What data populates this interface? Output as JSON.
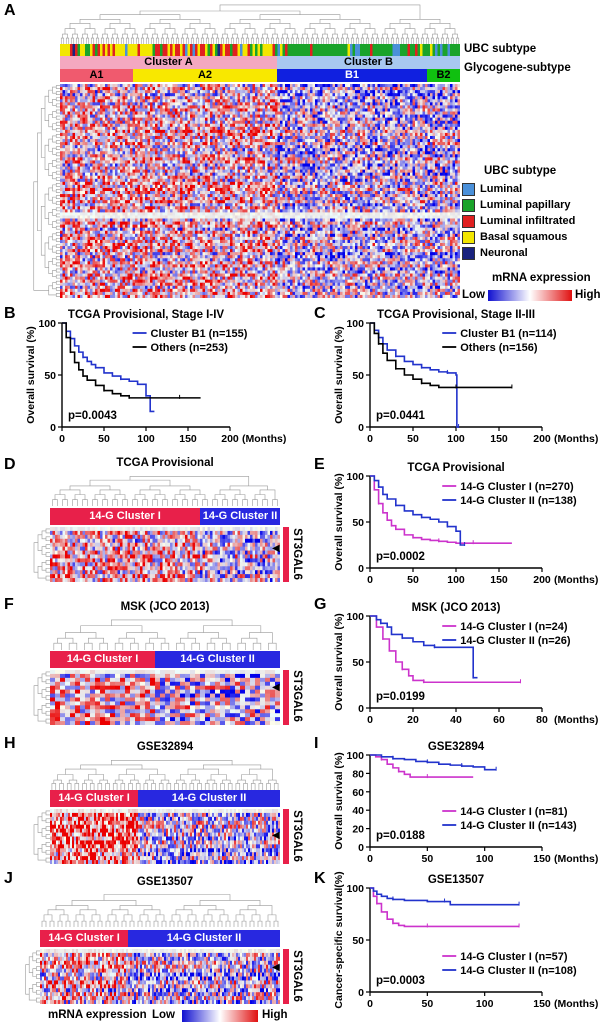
{
  "panel_labels": [
    "A",
    "B",
    "C",
    "D",
    "E",
    "F",
    "G",
    "H",
    "I",
    "J",
    "K"
  ],
  "panel_a": {
    "row_labels": {
      "ubc": "UBC subtype",
      "glyco": "Glycogene-subtype"
    },
    "clusters": {
      "a": "Cluster A",
      "b": "Cluster B",
      "a1": "A1",
      "a2": "A2",
      "b1": "B1",
      "b2": "B2"
    },
    "legend_title": "UBC subtype",
    "legend": [
      {
        "label": "Luminal",
        "color": "#4a90d9"
      },
      {
        "label": "Luminal papillary",
        "color": "#1aa32a"
      },
      {
        "label": "Luminal infiltrated",
        "color": "#e02020"
      },
      {
        "label": "Basal squamous",
        "color": "#f2e600"
      },
      {
        "label": "Neuronal",
        "color": "#1a237e"
      }
    ],
    "expr_title": "mRNA expression",
    "expr_low": "Low",
    "expr_high": "High"
  },
  "heatmaps": {
    "d": {
      "title": "TCGA Provisional",
      "c1": "14-G Cluster I",
      "c2": "14-G Cluster II",
      "gene": "ST3GAL6"
    },
    "f": {
      "title": "MSK (JCO 2013)",
      "c1": "14-G Cluster I",
      "c2": "14-G Cluster II",
      "gene": "ST3GAL6"
    },
    "h": {
      "title": "GSE32894",
      "c1": "14-G Cluster I",
      "c2": "14-G Cluster II",
      "gene": "ST3GAL6"
    },
    "j": {
      "title": "GSE13507",
      "c1": "14-G Cluster I",
      "c2": "14-G Cluster II",
      "gene": "ST3GAL6"
    }
  },
  "bottom_legend": {
    "title": "mRNA expression",
    "low": "Low",
    "high": "High"
  },
  "chart_data": [
    {
      "id": "B",
      "type": "line",
      "title": "TCGA Provisional, Stage I-IV",
      "ylabel": "Overall survival (%)",
      "xlabel": "(Months)",
      "xlim": [
        0,
        200
      ],
      "ylim": [
        0,
        100
      ],
      "xticks": [
        0,
        50,
        100,
        150,
        200
      ],
      "yticks": [
        0,
        50,
        100
      ],
      "legend_position": "top-right",
      "pvalue": "p=0.0043",
      "series": [
        {
          "name": "Cluster B1 (n=155)",
          "color": "#2233cc",
          "x": [
            0,
            5,
            10,
            15,
            20,
            25,
            30,
            35,
            40,
            50,
            60,
            70,
            80,
            90,
            100,
            105,
            110
          ],
          "y": [
            100,
            92,
            85,
            78,
            72,
            67,
            63,
            60,
            57,
            52,
            49,
            46,
            44,
            41,
            30,
            15,
            15
          ]
        },
        {
          "name": "Others (n=253)",
          "color": "#000000",
          "x": [
            0,
            5,
            10,
            15,
            20,
            25,
            30,
            40,
            50,
            60,
            70,
            80,
            100,
            120,
            140,
            165
          ],
          "y": [
            100,
            86,
            72,
            62,
            55,
            49,
            45,
            40,
            35,
            32,
            30,
            28,
            28,
            28,
            28,
            28
          ]
        }
      ]
    },
    {
      "id": "C",
      "type": "line",
      "title": "TCGA Provisional, Stage II-III",
      "ylabel": "Overall survival (%)",
      "xlabel": "(Months)",
      "xlim": [
        0,
        200
      ],
      "ylim": [
        0,
        100
      ],
      "xticks": [
        0,
        50,
        100,
        150,
        200
      ],
      "yticks": [
        0,
        50,
        100
      ],
      "legend_position": "top-right",
      "pvalue": "p=0.0441",
      "series": [
        {
          "name": "Cluster B1 (n=114)",
          "color": "#2233cc",
          "x": [
            0,
            5,
            10,
            15,
            20,
            30,
            40,
            50,
            60,
            70,
            80,
            90,
            100,
            101,
            103
          ],
          "y": [
            100,
            93,
            86,
            80,
            74,
            68,
            63,
            60,
            57,
            55,
            53,
            52,
            50,
            0,
            0
          ]
        },
        {
          "name": "Others (n=156)",
          "color": "#000000",
          "x": [
            0,
            5,
            10,
            15,
            20,
            30,
            40,
            50,
            60,
            70,
            80,
            100,
            120,
            140,
            165
          ],
          "y": [
            100,
            90,
            80,
            71,
            64,
            56,
            50,
            46,
            42,
            40,
            38,
            38,
            38,
            38,
            38
          ]
        }
      ]
    },
    {
      "id": "E",
      "type": "line",
      "title": "TCGA Provisional",
      "ylabel": "Overall survival (%)",
      "xlabel": "(Months)",
      "xlim": [
        0,
        200
      ],
      "ylim": [
        0,
        100
      ],
      "xticks": [
        0,
        50,
        100,
        150,
        200
      ],
      "yticks": [
        0,
        50,
        100
      ],
      "legend_position": "top-right",
      "pvalue": "p=0.0002",
      "series": [
        {
          "name": "14-G Cluster I (n=270)",
          "color": "#cc33cc",
          "x": [
            0,
            5,
            10,
            15,
            20,
            25,
            30,
            40,
            50,
            60,
            70,
            80,
            90,
            100,
            120,
            140,
            165
          ],
          "y": [
            100,
            85,
            70,
            60,
            52,
            46,
            42,
            36,
            33,
            31,
            30,
            29,
            28,
            27,
            27,
            27,
            27
          ]
        },
        {
          "name": "14-G Cluster II (n=138)",
          "color": "#2233cc",
          "x": [
            0,
            5,
            10,
            15,
            20,
            30,
            40,
            50,
            60,
            70,
            80,
            90,
            100,
            105,
            110
          ],
          "y": [
            100,
            95,
            88,
            80,
            75,
            68,
            62,
            58,
            55,
            53,
            50,
            45,
            40,
            25,
            25
          ]
        }
      ]
    },
    {
      "id": "G",
      "type": "line",
      "title": "MSK (JCO 2013)",
      "ylabel": "Overall survival (%)",
      "xlabel": "(Months)",
      "xlim": [
        0,
        80
      ],
      "ylim": [
        0,
        100
      ],
      "xticks": [
        0,
        20,
        40,
        60,
        80
      ],
      "yticks": [
        0,
        50,
        100
      ],
      "legend_position": "top-right",
      "pvalue": "p=0.0199",
      "series": [
        {
          "name": "14-G Cluster I (n=24)",
          "color": "#cc33cc",
          "x": [
            0,
            3,
            6,
            9,
            12,
            15,
            18,
            20,
            25,
            30,
            50,
            70
          ],
          "y": [
            100,
            88,
            75,
            62,
            50,
            42,
            35,
            30,
            28,
            28,
            28,
            28
          ]
        },
        {
          "name": "14-G Cluster II (n=26)",
          "color": "#2233cc",
          "x": [
            0,
            3,
            5,
            8,
            10,
            15,
            20,
            25,
            30,
            40,
            47,
            48,
            50
          ],
          "y": [
            100,
            96,
            92,
            88,
            80,
            76,
            72,
            68,
            66,
            66,
            66,
            33,
            33
          ]
        }
      ]
    },
    {
      "id": "I",
      "type": "line",
      "title": "GSE32894",
      "ylabel": "Overall survival (%)",
      "xlabel": "(Months)",
      "xlim": [
        0,
        150
      ],
      "ylim": [
        0,
        100
      ],
      "xticks": [
        0,
        50,
        100,
        150
      ],
      "yticks": [
        0,
        20,
        40,
        60,
        80,
        100
      ],
      "legend_position": "bottom-right",
      "pvalue": "p=0.0188",
      "series": [
        {
          "name": "14-G Cluster I (n=81)",
          "color": "#cc33cc",
          "x": [
            0,
            5,
            10,
            15,
            20,
            25,
            30,
            35,
            50,
            70,
            90
          ],
          "y": [
            100,
            98,
            95,
            90,
            86,
            82,
            79,
            76,
            76,
            76,
            76
          ]
        },
        {
          "name": "14-G Cluster II (n=143)",
          "color": "#2233cc",
          "x": [
            0,
            10,
            20,
            30,
            40,
            50,
            60,
            70,
            80,
            90,
            100,
            110
          ],
          "y": [
            100,
            98,
            96,
            95,
            93,
            92,
            90,
            89,
            88,
            87,
            84,
            84
          ]
        }
      ]
    },
    {
      "id": "K",
      "type": "line",
      "title": "GSE13507",
      "ylabel": "Cancer-specific survival(%)",
      "xlabel": "(Months)",
      "xlim": [
        0,
        150
      ],
      "ylim": [
        0,
        100
      ],
      "xticks": [
        0,
        50,
        100,
        150
      ],
      "yticks": [
        0,
        50,
        100
      ],
      "legend_position": "bottom-right",
      "pvalue": "p=0.0003",
      "series": [
        {
          "name": "14-G Cluster I (n=57)",
          "color": "#cc33cc",
          "x": [
            0,
            3,
            6,
            10,
            15,
            20,
            25,
            30,
            50,
            80,
            100,
            130
          ],
          "y": [
            100,
            92,
            85,
            77,
            70,
            66,
            64,
            63,
            63,
            63,
            63,
            63
          ]
        },
        {
          "name": "14-G Cluster II (n=108)",
          "color": "#2233cc",
          "x": [
            0,
            3,
            6,
            10,
            15,
            20,
            30,
            50,
            65,
            70,
            100,
            130
          ],
          "y": [
            100,
            97,
            94,
            92,
            90,
            89,
            88,
            87,
            87,
            84,
            84,
            84
          ]
        }
      ]
    }
  ]
}
